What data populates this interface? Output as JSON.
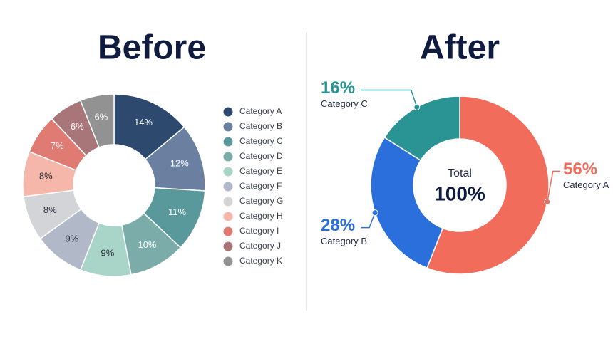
{
  "chart_data": [
    {
      "type": "donut",
      "title": "Before",
      "categories": [
        "Category A",
        "Category B",
        "Category C",
        "Category D",
        "Category E",
        "Category F",
        "Category G",
        "Category H",
        "Category I",
        "Category J",
        "Category K"
      ],
      "values": [
        14,
        12,
        11,
        10,
        9,
        9,
        8,
        8,
        7,
        6,
        6
      ],
      "value_labels": [
        "14%",
        "12%",
        "11%",
        "10%",
        "9%",
        "9%",
        "8%",
        "8%",
        "7%",
        "6%",
        "6%"
      ],
      "colors": [
        "#2d4a6e",
        "#6b80a1",
        "#5a999b",
        "#7cacaa",
        "#a9d5c9",
        "#b1b9c9",
        "#d2d4d8",
        "#f5b7a9",
        "#e07b73",
        "#a87579",
        "#929292"
      ],
      "legend": "right"
    },
    {
      "type": "donut",
      "title": "After",
      "categories": [
        "Category A",
        "Category B",
        "Category C"
      ],
      "values": [
        56,
        28,
        16
      ],
      "value_labels": [
        "56%",
        "28%",
        "16%"
      ],
      "colors": [
        "#f26c5c",
        "#2a6fdc",
        "#2a9494"
      ],
      "center_title": "Total",
      "center_value": "100%",
      "legend": "callout"
    }
  ]
}
